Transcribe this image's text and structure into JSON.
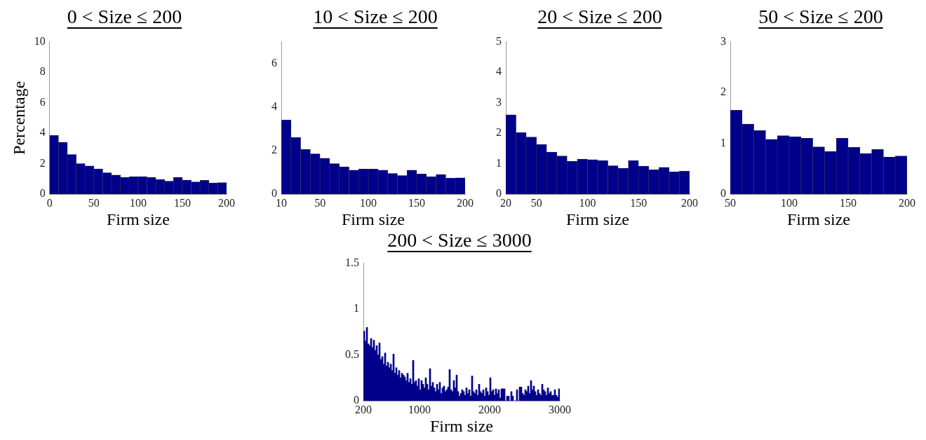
{
  "chart_data": [
    {
      "type": "histogram",
      "title": "0 < Size ≤ 200",
      "xlabel": "Firm size",
      "ylabel": "Percentage",
      "color": "#00008b",
      "bins": [
        0,
        10,
        20,
        30,
        40,
        50,
        60,
        70,
        80,
        90,
        100,
        110,
        120,
        130,
        140,
        150,
        160,
        170,
        180,
        190,
        200
      ],
      "values": [
        3.85,
        3.4,
        2.6,
        2.0,
        1.85,
        1.65,
        1.4,
        1.25,
        1.1,
        1.15,
        1.15,
        1.1,
        0.95,
        0.85,
        1.1,
        0.92,
        0.8,
        0.9,
        0.73,
        0.75
      ],
      "xlim": [
        0,
        200
      ],
      "xticks": [
        0,
        50,
        100,
        150,
        200
      ],
      "ylim": [
        0,
        10
      ],
      "yticks": [
        0,
        2,
        4,
        6,
        8,
        10
      ]
    },
    {
      "type": "histogram",
      "title": "10 < Size ≤ 200",
      "xlabel": "Firm size",
      "color": "#00008b",
      "bins": [
        10,
        20,
        30,
        40,
        50,
        60,
        70,
        80,
        90,
        100,
        110,
        120,
        130,
        140,
        150,
        160,
        170,
        180,
        190,
        200
      ],
      "values": [
        3.4,
        2.6,
        2.05,
        1.85,
        1.65,
        1.4,
        1.25,
        1.1,
        1.15,
        1.15,
        1.1,
        0.95,
        0.85,
        1.1,
        0.92,
        0.8,
        0.9,
        0.73,
        0.75
      ],
      "xlim": [
        10,
        200
      ],
      "xticks": [
        10,
        50,
        100,
        150,
        200
      ],
      "ylim": [
        0,
        7
      ],
      "yticks": [
        0,
        2,
        4,
        6
      ]
    },
    {
      "type": "histogram",
      "title": "20 < Size ≤ 200",
      "xlabel": "Firm size",
      "color": "#00008b",
      "bins": [
        20,
        30,
        40,
        50,
        60,
        70,
        80,
        90,
        100,
        110,
        120,
        130,
        140,
        150,
        160,
        170,
        180,
        190,
        200
      ],
      "values": [
        2.6,
        2.02,
        1.87,
        1.63,
        1.38,
        1.25,
        1.08,
        1.15,
        1.13,
        1.1,
        0.93,
        0.85,
        1.1,
        0.92,
        0.8,
        0.88,
        0.73,
        0.75
      ],
      "xlim": [
        20,
        200
      ],
      "xticks": [
        20,
        50,
        100,
        150,
        200
      ],
      "ylim": [
        0,
        5
      ],
      "yticks": [
        0,
        1,
        2,
        3,
        4,
        5
      ]
    },
    {
      "type": "histogram",
      "title": "50 < Size ≤ 200",
      "xlabel": "Firm size",
      "color": "#00008b",
      "bins": [
        50,
        60,
        70,
        80,
        90,
        100,
        110,
        120,
        130,
        140,
        150,
        160,
        170,
        180,
        190,
        200
      ],
      "values": [
        1.65,
        1.38,
        1.25,
        1.08,
        1.15,
        1.13,
        1.1,
        0.93,
        0.84,
        1.1,
        0.92,
        0.8,
        0.88,
        0.73,
        0.75
      ],
      "xlim": [
        50,
        200
      ],
      "xticks": [
        50,
        100,
        150,
        200
      ],
      "ylim": [
        0,
        3
      ],
      "yticks": [
        0,
        1,
        2,
        3
      ]
    },
    {
      "type": "histogram",
      "title": "200 < Size ≤ 3000",
      "xlabel": "Firm size",
      "color": "#00008b",
      "bins": [
        200,
        220,
        240,
        260,
        280,
        300,
        320,
        340,
        360,
        380,
        400,
        420,
        440,
        460,
        480,
        500,
        520,
        540,
        560,
        580,
        600,
        620,
        640,
        660,
        680,
        700,
        720,
        740,
        760,
        780,
        800,
        820,
        840,
        860,
        880,
        900,
        920,
        940,
        960,
        980,
        1000,
        1020,
        1040,
        1060,
        1080,
        1100,
        1120,
        1140,
        1160,
        1180,
        1200,
        1220,
        1240,
        1260,
        1280,
        1300,
        1320,
        1340,
        1360,
        1380,
        1400,
        1420,
        1440,
        1460,
        1480,
        1500,
        1520,
        1540,
        1560,
        1580,
        1600,
        1620,
        1640,
        1660,
        1680,
        1700,
        1720,
        1740,
        1760,
        1780,
        1800,
        1820,
        1840,
        1860,
        1880,
        1900,
        1920,
        1940,
        1960,
        1980,
        2000,
        2020,
        2040,
        2060,
        2080,
        2100,
        2120,
        2140,
        2160,
        2180,
        2200,
        2220,
        2240,
        2260,
        2280,
        2300,
        2320,
        2340,
        2360,
        2380,
        2400,
        2420,
        2440,
        2460,
        2480,
        2500,
        2520,
        2540,
        2560,
        2580,
        2600,
        2620,
        2640,
        2660,
        2680,
        2700,
        2720,
        2740,
        2760,
        2780,
        2800,
        2820,
        2840,
        2860,
        2880,
        2900,
        2920,
        2940,
        2960,
        2980,
        3000
      ],
      "values": [
        0.76,
        0.65,
        0.8,
        0.62,
        0.6,
        0.68,
        0.58,
        0.66,
        0.55,
        0.6,
        0.5,
        0.63,
        0.45,
        0.48,
        0.4,
        0.52,
        0.38,
        0.42,
        0.36,
        0.4,
        0.33,
        0.51,
        0.3,
        0.36,
        0.28,
        0.33,
        0.25,
        0.3,
        0.28,
        0.26,
        0.22,
        0.3,
        0.2,
        0.24,
        0.18,
        0.44,
        0.2,
        0.22,
        0.16,
        0.24,
        0.12,
        0.22,
        0.18,
        0.14,
        0.25,
        0.18,
        0.12,
        0.35,
        0.16,
        0.2,
        0.14,
        0.1,
        0.18,
        0.12,
        0.2,
        0.08,
        0.14,
        0.16,
        0.1,
        0.12,
        0.15,
        0.34,
        0.12,
        0.1,
        0.22,
        0.14,
        0.28,
        0.1,
        0.05,
        0.08,
        0.12,
        0.1,
        0.06,
        0.14,
        0.08,
        0.12,
        0.05,
        0.27,
        0.1,
        0.08,
        0.12,
        0.06,
        0.18,
        0.1,
        0.08,
        0.12,
        0.05,
        0.14,
        0.1,
        0.06,
        0.25,
        0.1,
        0.12,
        0.06,
        0.13,
        0.08,
        0.12,
        0.03,
        0.13,
        0.13,
        0.13,
        0,
        0.05,
        0.05,
        0,
        0.1,
        0.05,
        0,
        0,
        0.12,
        0,
        0.15,
        0.15,
        0.08,
        0.06,
        0.12,
        0.1,
        0.16,
        0.08,
        0.22,
        0.12,
        0.16,
        0.1,
        0.06,
        0.12,
        0.08,
        0.06,
        0.18,
        0.12,
        0.1,
        0.06,
        0.14,
        0.08,
        0.1,
        0.06,
        0.06,
        0.12,
        0.06,
        0.04,
        0.13
      ],
      "xlim": [
        200,
        3000
      ],
      "xticks": [
        200,
        1000,
        2000,
        3000
      ],
      "ylim": [
        0,
        1.5
      ],
      "yticks": [
        0,
        0.5,
        1,
        1.5
      ]
    }
  ]
}
